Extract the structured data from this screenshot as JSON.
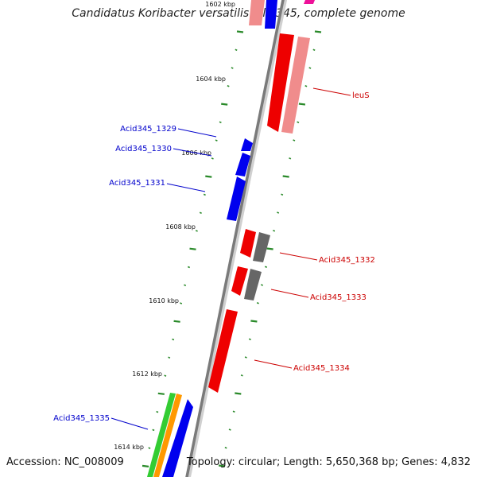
{
  "title": "Candidatus Koribacter versatilis Ellin345, complete genome",
  "footer": {
    "accession": "Accession: NC_008009",
    "stats": "Topology: circular; Length: 5,650,368 bp; Genes: 4,832"
  },
  "colors": {
    "backbone": "#7a7a7a",
    "ticks": "#2a8a2a",
    "blue": "#0000ee",
    "red": "#ee0000",
    "pink": "#f08c8c",
    "gray": "#666666",
    "green": "#33cc33",
    "orange": "#ff9900",
    "magenta": "#ee1199"
  },
  "ruler_labels": [
    "1602 kbp",
    "1604 kbp",
    "1606 kbp",
    "1608 kbp",
    "1610 kbp",
    "1612 kbp",
    "1614 kbp"
  ],
  "gene_labels": {
    "acid345_1329": "Acid345_1329",
    "acid345_1330": "Acid345_1330",
    "acid345_1331": "Acid345_1331",
    "leuS": "leuS",
    "acid345_1332": "Acid345_1332",
    "acid345_1333": "Acid345_1333",
    "acid345_1334": "Acid345_1334",
    "acid345_1335": "Acid345_1335"
  }
}
